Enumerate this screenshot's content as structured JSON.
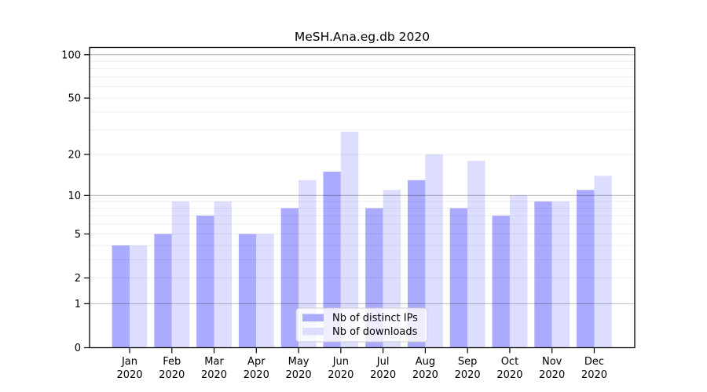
{
  "chart_data": {
    "type": "bar",
    "title": "MeSH.Ana.eg.db 2020",
    "categories": [
      "Jan 2020",
      "Feb 2020",
      "Mar 2020",
      "Apr 2020",
      "May 2020",
      "Jun 2020",
      "Jul 2020",
      "Aug 2020",
      "Sep 2020",
      "Oct 2020",
      "Nov 2020",
      "Dec 2020"
    ],
    "series": [
      {
        "name": "Nb of distinct IPs",
        "color": "#aaaaff",
        "values": [
          4,
          5,
          7,
          5,
          8,
          15,
          8,
          13,
          8,
          7,
          9,
          11
        ]
      },
      {
        "name": "Nb of downloads",
        "color": "#ddddff",
        "values": [
          4,
          9,
          9,
          5,
          13,
          29,
          11,
          20,
          18,
          10,
          9,
          14
        ]
      }
    ],
    "xlabel": "",
    "ylabel": "",
    "yscale": "log1p",
    "yticks": [
      0,
      1,
      2,
      5,
      10,
      20,
      50,
      100
    ],
    "ylim": [
      0,
      111
    ],
    "grid": true,
    "legend_position": "bottom-center",
    "background_color": "#ffffff"
  }
}
